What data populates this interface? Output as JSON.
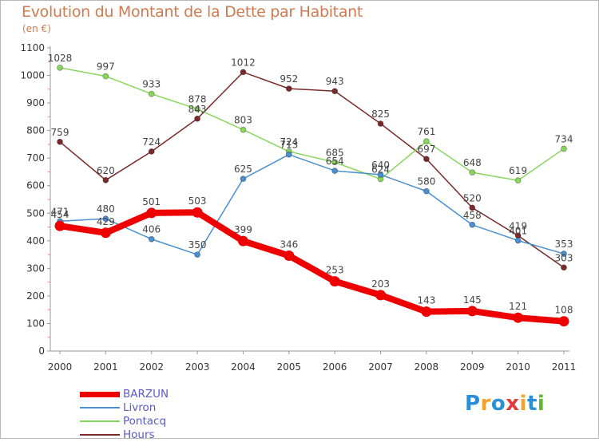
{
  "header": {
    "title": "Evolution du Montant de la Dette par Habitant",
    "unit": "(en €)"
  },
  "logo": {
    "text": "Proxiti",
    "colors": [
      "#2a8fd6",
      "#f4a22a",
      "#2a8fd6",
      "#e23b3b",
      "#f4a22a",
      "#2a8fd6",
      "#5cb82e"
    ]
  },
  "chart_data": {
    "type": "line",
    "title": "Evolution du Montant de la Dette par Habitant",
    "subtitle": "(en €)",
    "xlabel": "",
    "ylabel": "",
    "x": [
      "2000",
      "2001",
      "2002",
      "2003",
      "2004",
      "2005",
      "2006",
      "2007",
      "2008",
      "2009",
      "2010",
      "2011"
    ],
    "ylim": [
      0,
      1100
    ],
    "yticks": [
      0,
      100,
      200,
      300,
      400,
      500,
      600,
      700,
      800,
      900,
      1000,
      1100
    ],
    "grid": false,
    "legend_position": "bottom-left",
    "series": [
      {
        "name": "BARZUN",
        "color": "#ee0000",
        "values": [
          454,
          429,
          501,
          503,
          399,
          346,
          253,
          203,
          143,
          145,
          121,
          108
        ],
        "labels": [
          "454",
          "429",
          "501",
          "503",
          "399",
          "346",
          "253",
          "203",
          "143",
          "145",
          "121",
          "108"
        ]
      },
      {
        "name": "Livron",
        "color": "#4a90d0",
        "values": [
          471,
          480,
          406,
          350,
          625,
          713,
          654,
          640,
          580,
          458,
          401,
          353
        ],
        "labels": [
          "471",
          "480",
          "406",
          "350",
          "625",
          "713",
          "654",
          "640",
          "580",
          "458",
          "401",
          "353"
        ]
      },
      {
        "name": "Pontacq",
        "color": "#88d65a",
        "values": [
          1028,
          997,
          933,
          878,
          803,
          724,
          685,
          624,
          761,
          648,
          619,
          734
        ],
        "labels": [
          "1028",
          "997",
          "933",
          "878",
          "803",
          "724",
          "685",
          "624",
          "761",
          "648",
          "619",
          "734"
        ]
      },
      {
        "name": "Hours",
        "color": "#7a2a2a",
        "values": [
          759,
          620,
          724,
          843,
          1012,
          952,
          943,
          825,
          697,
          520,
          419,
          303
        ],
        "labels": [
          "759",
          "620",
          "724",
          "843",
          "1012",
          "952",
          "943",
          "825",
          "697",
          "520",
          "419",
          "303"
        ]
      }
    ]
  }
}
